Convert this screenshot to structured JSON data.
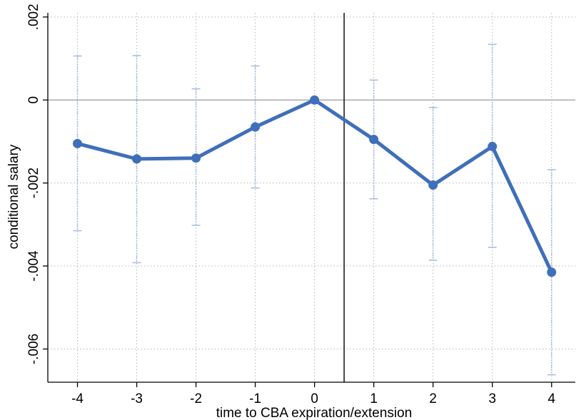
{
  "chart_data": {
    "type": "line",
    "xlabel": "time to CBA expiration/extension",
    "ylabel": "conditional salary",
    "x": [
      -4,
      -3,
      -2,
      -1,
      0,
      1,
      2,
      3,
      4
    ],
    "x_tick_labels": [
      "-4",
      "-3",
      "-2",
      "-1",
      "0",
      "1",
      "2",
      "3",
      "4"
    ],
    "y_ticks": [
      0.002,
      0,
      -0.002,
      -0.004,
      -0.006
    ],
    "y_tick_labels": [
      ".002",
      "0",
      "-.002",
      "-.004",
      "-.006"
    ],
    "xlim": [
      -4.5,
      4.4
    ],
    "ylim": [
      -0.0068,
      0.0021
    ],
    "series": [
      {
        "values": [
          -0.00105,
          -0.00142,
          -0.0014,
          -0.00065,
          0.0,
          -0.00095,
          -0.00205,
          -0.00112,
          -0.00415
        ],
        "ci_low": [
          -0.00315,
          -0.00392,
          -0.00302,
          -0.00212,
          0.0,
          -0.00238,
          -0.00386,
          -0.00355,
          -0.00662
        ],
        "ci_high": [
          0.00106,
          0.00107,
          0.00027,
          0.00082,
          0.0,
          0.00048,
          -0.00018,
          0.00134,
          -0.00168
        ]
      }
    ],
    "reference_lines": {
      "horizontal_y": 0,
      "vertical_x": 0.5
    },
    "grid": true,
    "colors": {
      "line": "#3f6fba",
      "ci": "#a9bfdf",
      "grid": "#b5b5b5",
      "zero_line": "#999999",
      "vline": "#333333",
      "axis": "#000000"
    }
  }
}
